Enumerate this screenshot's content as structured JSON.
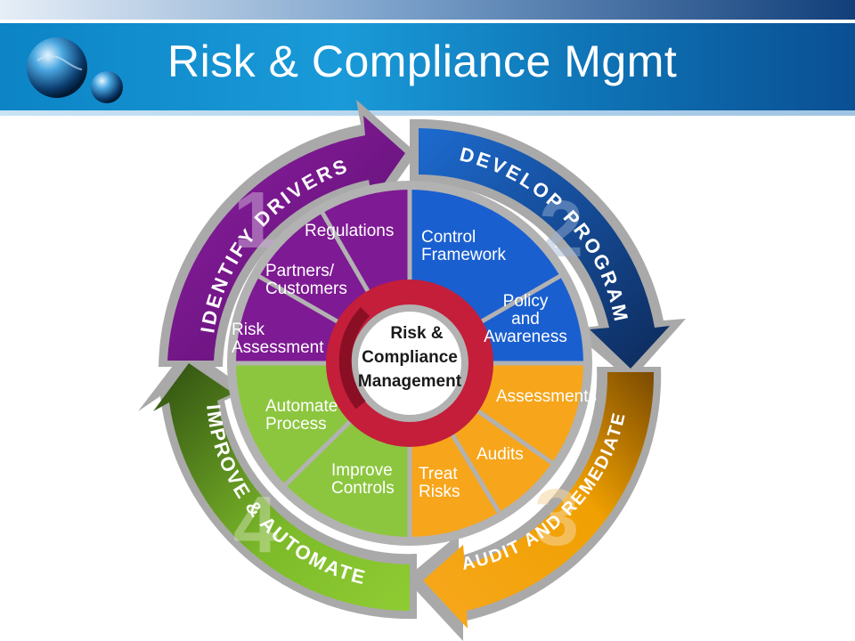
{
  "title": "Risk & Compliance Mgmt",
  "colors": {
    "purple": "#7b1d8e",
    "blue": "#1463c9",
    "orange": "#f39c12",
    "green": "#7ab82a",
    "ring": "#c41e3a"
  },
  "quadrants": [
    {
      "number": "1",
      "label": "IDENTIFY DRIVERS"
    },
    {
      "number": "2",
      "label": "DEVELOP PROGRAM"
    },
    {
      "number": "3",
      "label": "AUDIT AND REMEDIATE"
    },
    {
      "number": "4",
      "label": "IMPROVE & AUTOMATE"
    }
  ],
  "segments": {
    "regulations": "Regulations",
    "partners": [
      "Partners/",
      "Customers"
    ],
    "risk_assessment": [
      "Risk",
      "Assessment"
    ],
    "control_framework": [
      "Control",
      "Framework"
    ],
    "policy": [
      "Policy",
      "and",
      "Awareness"
    ],
    "assessments": "Assessments",
    "audits": "Audits",
    "treat_risks": [
      "Treat",
      "Risks"
    ],
    "improve_controls": [
      "Improve",
      "Controls"
    ],
    "automate_process": [
      "Automate",
      "Process"
    ]
  },
  "center": [
    "Risk &",
    "Compliance",
    "Management"
  ]
}
